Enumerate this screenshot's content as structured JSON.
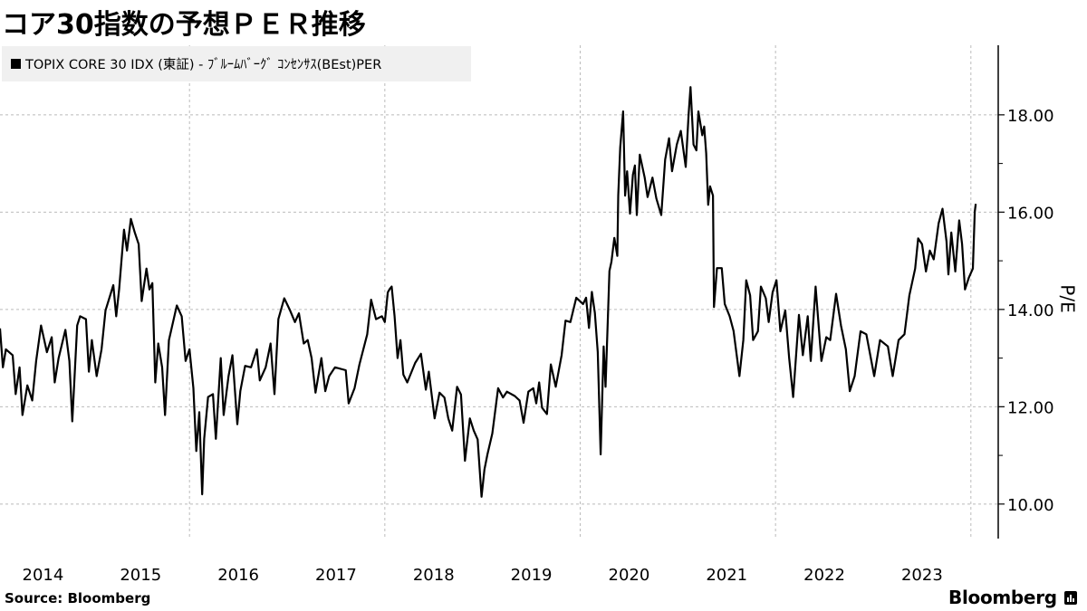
{
  "title": "コア30指数の予想ＰＥＲ推移",
  "legend": {
    "label": "TOPIX CORE 30 IDX (東証) - ﾌﾞﾙｰﾑﾊﾞｰｸﾞ ｺﾝｾﾝｻｽ(BEst)PER",
    "swatch_color": "#000000"
  },
  "source": "Source:  Bloomberg",
  "logo": "Bloomberg",
  "chart_data": {
    "type": "line",
    "title": "コア30指数の予想ＰＥＲ推移",
    "xlabel": "",
    "ylabel": "P/E",
    "x_unit": "year (decimal)",
    "xlim": [
      2014.06,
      2024.28
    ],
    "ylim": [
      9.29,
      19.43
    ],
    "y_ticks": [
      "10.00",
      "12.00",
      "14.00",
      "16.00",
      "18.00"
    ],
    "y_tick_values": [
      10,
      12,
      14,
      16,
      18
    ],
    "y_minor_ticks": [
      11,
      13,
      15,
      17
    ],
    "x_tick_labels": [
      "2014",
      "2015",
      "2016",
      "2017",
      "2018",
      "2019",
      "2020",
      "2021",
      "2022",
      "2023"
    ],
    "x_gridlines": [
      2016,
      2018,
      2020,
      2022,
      2024
    ],
    "grid": true,
    "axis_position": "right",
    "legend_position": "top-left",
    "line_color": "#000000",
    "series": [
      {
        "name": "TOPIX CORE 30 IDX (東証) - ﾌﾞﾙｰﾑﾊﾞｰｸﾞ ｺﾝｾﾝｻｽ(BEst)PER",
        "points": [
          [
            2014.06,
            13.61
          ],
          [
            2014.09,
            12.81
          ],
          [
            2014.12,
            13.18
          ],
          [
            2014.19,
            13.06
          ],
          [
            2014.22,
            12.26
          ],
          [
            2014.26,
            12.81
          ],
          [
            2014.29,
            11.83
          ],
          [
            2014.34,
            12.44
          ],
          [
            2014.39,
            12.13
          ],
          [
            2014.43,
            12.94
          ],
          [
            2014.48,
            13.67
          ],
          [
            2014.54,
            13.12
          ],
          [
            2014.59,
            13.43
          ],
          [
            2014.62,
            12.5
          ],
          [
            2014.66,
            13.0
          ],
          [
            2014.73,
            13.58
          ],
          [
            2014.77,
            12.94
          ],
          [
            2014.8,
            11.7
          ],
          [
            2014.85,
            13.67
          ],
          [
            2014.88,
            13.86
          ],
          [
            2014.94,
            13.8
          ],
          [
            2014.97,
            12.72
          ],
          [
            2015.0,
            13.37
          ],
          [
            2015.05,
            12.63
          ],
          [
            2015.1,
            13.18
          ],
          [
            2015.14,
            13.98
          ],
          [
            2015.22,
            14.5
          ],
          [
            2015.25,
            13.86
          ],
          [
            2015.28,
            14.41
          ],
          [
            2015.33,
            15.64
          ],
          [
            2015.36,
            15.21
          ],
          [
            2015.4,
            15.86
          ],
          [
            2015.44,
            15.58
          ],
          [
            2015.48,
            15.34
          ],
          [
            2015.51,
            14.17
          ],
          [
            2015.56,
            14.84
          ],
          [
            2015.59,
            14.41
          ],
          [
            2015.62,
            14.54
          ],
          [
            2015.65,
            12.5
          ],
          [
            2015.68,
            13.3
          ],
          [
            2015.72,
            12.81
          ],
          [
            2015.75,
            11.83
          ],
          [
            2015.79,
            13.37
          ],
          [
            2015.87,
            14.08
          ],
          [
            2015.92,
            13.86
          ],
          [
            2015.96,
            12.94
          ],
          [
            2016.0,
            13.18
          ],
          [
            2016.04,
            12.38
          ],
          [
            2016.07,
            11.09
          ],
          [
            2016.1,
            11.89
          ],
          [
            2016.13,
            10.2
          ],
          [
            2016.15,
            11.34
          ],
          [
            2016.19,
            12.2
          ],
          [
            2016.24,
            12.26
          ],
          [
            2016.27,
            11.34
          ],
          [
            2016.32,
            13.0
          ],
          [
            2016.35,
            11.83
          ],
          [
            2016.4,
            12.63
          ],
          [
            2016.44,
            13.06
          ],
          [
            2016.49,
            11.64
          ],
          [
            2016.52,
            12.32
          ],
          [
            2016.57,
            12.84
          ],
          [
            2016.63,
            12.81
          ],
          [
            2016.69,
            13.18
          ],
          [
            2016.72,
            12.54
          ],
          [
            2016.78,
            12.81
          ],
          [
            2016.83,
            13.3
          ],
          [
            2016.87,
            12.26
          ],
          [
            2016.91,
            13.8
          ],
          [
            2016.97,
            14.23
          ],
          [
            2017.03,
            13.98
          ],
          [
            2017.08,
            13.74
          ],
          [
            2017.12,
            13.92
          ],
          [
            2017.17,
            13.3
          ],
          [
            2017.21,
            13.37
          ],
          [
            2017.25,
            13.0
          ],
          [
            2017.29,
            12.29
          ],
          [
            2017.35,
            13.0
          ],
          [
            2017.39,
            12.32
          ],
          [
            2017.43,
            12.63
          ],
          [
            2017.49,
            12.81
          ],
          [
            2017.6,
            12.75
          ],
          [
            2017.63,
            12.07
          ],
          [
            2017.69,
            12.38
          ],
          [
            2017.74,
            12.87
          ],
          [
            2017.82,
            13.49
          ],
          [
            2017.86,
            14.2
          ],
          [
            2017.91,
            13.8
          ],
          [
            2017.97,
            13.86
          ],
          [
            2018.0,
            13.74
          ],
          [
            2018.03,
            14.35
          ],
          [
            2018.05,
            14.42
          ],
          [
            2018.07,
            14.47
          ],
          [
            2018.1,
            13.86
          ],
          [
            2018.13,
            13.0
          ],
          [
            2018.16,
            13.37
          ],
          [
            2018.19,
            12.66
          ],
          [
            2018.23,
            12.5
          ],
          [
            2018.31,
            12.9
          ],
          [
            2018.37,
            13.09
          ],
          [
            2018.42,
            12.35
          ],
          [
            2018.45,
            12.72
          ],
          [
            2018.51,
            11.76
          ],
          [
            2018.56,
            12.29
          ],
          [
            2018.61,
            12.19
          ],
          [
            2018.65,
            11.76
          ],
          [
            2018.69,
            11.51
          ],
          [
            2018.74,
            12.41
          ],
          [
            2018.78,
            12.25
          ],
          [
            2018.82,
            10.89
          ],
          [
            2018.87,
            11.76
          ],
          [
            2018.91,
            11.51
          ],
          [
            2018.95,
            11.33
          ],
          [
            2018.99,
            10.15
          ],
          [
            2019.02,
            10.71
          ],
          [
            2019.05,
            11.02
          ],
          [
            2019.1,
            11.45
          ],
          [
            2019.16,
            12.38
          ],
          [
            2019.21,
            12.19
          ],
          [
            2019.25,
            12.31
          ],
          [
            2019.33,
            12.22
          ],
          [
            2019.38,
            12.13
          ],
          [
            2019.42,
            11.67
          ],
          [
            2019.47,
            12.31
          ],
          [
            2019.52,
            12.38
          ],
          [
            2019.55,
            12.07
          ],
          [
            2019.58,
            12.5
          ],
          [
            2019.61,
            11.98
          ],
          [
            2019.66,
            11.85
          ],
          [
            2019.7,
            12.87
          ],
          [
            2019.75,
            12.41
          ],
          [
            2019.81,
            13.06
          ],
          [
            2019.85,
            13.77
          ],
          [
            2019.9,
            13.74
          ],
          [
            2019.96,
            14.24
          ],
          [
            2020.03,
            14.11
          ],
          [
            2020.06,
            14.24
          ],
          [
            2020.09,
            13.62
          ],
          [
            2020.12,
            14.36
          ],
          [
            2020.15,
            13.93
          ],
          [
            2020.18,
            13.12
          ],
          [
            2020.21,
            11.02
          ],
          [
            2020.24,
            13.24
          ],
          [
            2020.26,
            12.41
          ],
          [
            2020.28,
            13.62
          ],
          [
            2020.3,
            14.79
          ],
          [
            2020.32,
            14.98
          ],
          [
            2020.35,
            15.47
          ],
          [
            2020.38,
            15.1
          ],
          [
            2020.39,
            16.34
          ],
          [
            2020.41,
            17.33
          ],
          [
            2020.44,
            18.07
          ],
          [
            2020.46,
            16.34
          ],
          [
            2020.48,
            16.84
          ],
          [
            2020.51,
            15.97
          ],
          [
            2020.54,
            16.77
          ],
          [
            2020.56,
            16.96
          ],
          [
            2020.58,
            15.94
          ],
          [
            2020.61,
            17.18
          ],
          [
            2020.66,
            16.71
          ],
          [
            2020.69,
            16.31
          ],
          [
            2020.74,
            16.71
          ],
          [
            2020.78,
            16.28
          ],
          [
            2020.83,
            15.94
          ],
          [
            2020.87,
            17.08
          ],
          [
            2020.91,
            17.52
          ],
          [
            2020.94,
            16.84
          ],
          [
            2020.99,
            17.39
          ],
          [
            2021.03,
            17.67
          ],
          [
            2021.08,
            16.93
          ],
          [
            2021.11,
            18.01
          ],
          [
            2021.13,
            18.57
          ],
          [
            2021.16,
            17.39
          ],
          [
            2021.19,
            17.27
          ],
          [
            2021.21,
            18.07
          ],
          [
            2021.25,
            17.58
          ],
          [
            2021.27,
            17.76
          ],
          [
            2021.29,
            17.21
          ],
          [
            2021.31,
            16.15
          ],
          [
            2021.33,
            16.53
          ],
          [
            2021.36,
            16.34
          ],
          [
            2021.37,
            14.05
          ],
          [
            2021.4,
            14.85
          ],
          [
            2021.45,
            14.85
          ],
          [
            2021.48,
            14.11
          ],
          [
            2021.53,
            13.86
          ],
          [
            2021.57,
            13.56
          ],
          [
            2021.63,
            12.63
          ],
          [
            2021.67,
            13.37
          ],
          [
            2021.7,
            14.6
          ],
          [
            2021.74,
            14.29
          ],
          [
            2021.77,
            13.37
          ],
          [
            2021.82,
            13.55
          ],
          [
            2021.85,
            14.47
          ],
          [
            2021.9,
            14.23
          ],
          [
            2021.93,
            13.74
          ],
          [
            2021.97,
            14.35
          ],
          [
            2022.01,
            14.6
          ],
          [
            2022.05,
            13.55
          ],
          [
            2022.1,
            13.98
          ],
          [
            2022.14,
            13.0
          ],
          [
            2022.18,
            12.2
          ],
          [
            2022.24,
            13.89
          ],
          [
            2022.28,
            13.06
          ],
          [
            2022.33,
            13.86
          ],
          [
            2022.36,
            12.94
          ],
          [
            2022.41,
            14.47
          ],
          [
            2022.47,
            12.94
          ],
          [
            2022.52,
            13.43
          ],
          [
            2022.56,
            13.37
          ],
          [
            2022.62,
            14.32
          ],
          [
            2022.67,
            13.67
          ],
          [
            2022.72,
            13.18
          ],
          [
            2022.76,
            12.32
          ],
          [
            2022.81,
            12.63
          ],
          [
            2022.87,
            13.55
          ],
          [
            2022.93,
            13.49
          ],
          [
            2023.01,
            12.63
          ],
          [
            2023.07,
            13.37
          ],
          [
            2023.15,
            13.24
          ],
          [
            2023.2,
            12.63
          ],
          [
            2023.26,
            13.37
          ],
          [
            2023.32,
            13.49
          ],
          [
            2023.37,
            14.29
          ],
          [
            2023.43,
            14.84
          ],
          [
            2023.46,
            15.46
          ],
          [
            2023.5,
            15.34
          ],
          [
            2023.54,
            14.78
          ],
          [
            2023.58,
            15.21
          ],
          [
            2023.62,
            15.03
          ],
          [
            2023.67,
            15.77
          ],
          [
            2023.71,
            16.07
          ],
          [
            2023.75,
            15.4
          ],
          [
            2023.77,
            14.72
          ],
          [
            2023.8,
            15.58
          ],
          [
            2023.84,
            14.78
          ],
          [
            2023.88,
            15.83
          ],
          [
            2023.91,
            15.34
          ],
          [
            2023.94,
            14.41
          ],
          [
            2023.98,
            14.66
          ],
          [
            2024.02,
            14.84
          ],
          [
            2024.04,
            16.01
          ],
          [
            2024.05,
            16.17
          ]
        ]
      }
    ]
  }
}
